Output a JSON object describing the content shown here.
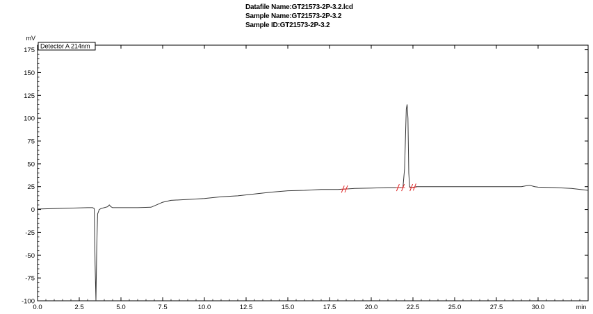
{
  "header": {
    "datafile_line": "Datafile Name:GT21573-2P-3.2.lcd",
    "sample_name_line": "Sample Name:GT21573-2P-3.2",
    "sample_id_line": "Sample ID:GT21573-2P-3.2"
  },
  "chart_data": {
    "type": "line",
    "ylabel": "mV",
    "xlabel": "min",
    "legend": "Detector A 214nm",
    "legend_placement": "top-left",
    "xlim": [
      0,
      33.0
    ],
    "ylim": [
      -100,
      180
    ],
    "x_ticks": [
      0.0,
      2.5,
      5.0,
      7.5,
      10.0,
      12.5,
      15.0,
      17.5,
      20.0,
      22.5,
      25.0,
      27.5,
      30.0
    ],
    "x_tick_labels": [
      "0.0",
      "2.5",
      "5.0",
      "7.5",
      "10.0",
      "12.5",
      "15.0",
      "17.5",
      "20.0",
      "22.5",
      "25.0",
      "27.5",
      "30.0"
    ],
    "y_ticks": [
      175,
      150,
      125,
      100,
      75,
      50,
      25,
      0,
      -25,
      -50,
      -75,
      -100
    ],
    "y_tick_labels": [
      "175",
      "150",
      "125",
      "100",
      "75",
      "50",
      "25",
      "0",
      "-25",
      "-50",
      "-75",
      "-100"
    ],
    "grid": false,
    "line_color": "#333333",
    "marker_color": "#dd2222",
    "series": [
      {
        "x": [
          0.0,
          1.0,
          2.0,
          3.0,
          3.3,
          3.4,
          3.45,
          3.5,
          3.55,
          3.6,
          3.7,
          3.8,
          4.0,
          4.2,
          4.3,
          4.4,
          4.5,
          5.0,
          6.0,
          6.8,
          7.0,
          7.5,
          8.0,
          9.0,
          10.0,
          11.0,
          12.0,
          13.0,
          14.0,
          15.0,
          16.0,
          17.0,
          18.0,
          19.0,
          20.0,
          21.0,
          21.5,
          21.9,
          22.0,
          22.1,
          22.15,
          22.2,
          22.25,
          22.3,
          22.4,
          22.5,
          22.7,
          23.0,
          24.0,
          25.0,
          26.0,
          27.0,
          28.0,
          29.0,
          29.3,
          29.5,
          29.8,
          30.0,
          31.0,
          32.0,
          33.0
        ],
        "y": [
          0.5,
          1,
          1.5,
          2,
          2,
          1,
          -60,
          -100,
          -40,
          -5,
          0,
          1,
          2,
          3,
          5,
          3,
          2,
          2,
          2,
          2.5,
          4,
          8,
          10,
          11,
          12,
          14,
          15,
          17,
          19,
          20.5,
          21,
          22,
          22,
          23,
          23.5,
          24,
          24,
          24,
          45,
          110,
          115,
          100,
          40,
          25,
          24,
          24,
          25,
          25,
          25,
          25,
          25,
          25,
          25,
          25,
          26,
          26.5,
          25,
          24.5,
          24,
          23,
          21
        ]
      }
    ],
    "integration_markers_x": [
      18.3,
      18.5,
      21.6,
      21.9,
      22.4,
      22.6
    ]
  }
}
